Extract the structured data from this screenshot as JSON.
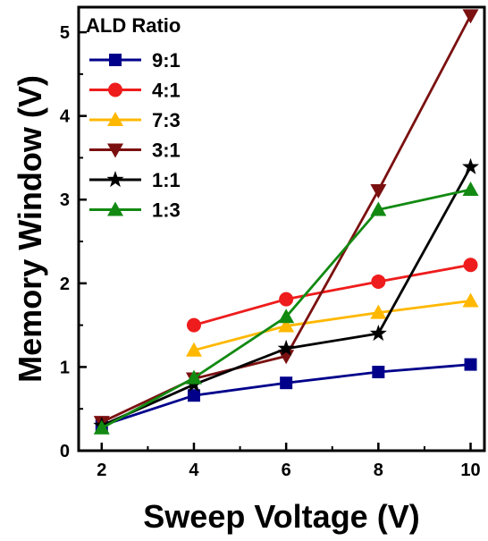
{
  "chart_data": {
    "type": "line",
    "title": "",
    "xlabel": "Sweep Voltage (V)",
    "ylabel": "Memory Window (V)",
    "xlim": [
      1.5,
      10.3
    ],
    "ylim": [
      0,
      5.3
    ],
    "xticks": [
      2,
      4,
      6,
      8,
      10
    ],
    "yticks": [
      0,
      1,
      2,
      3,
      4,
      5
    ],
    "grid": false,
    "legend": {
      "title": "ALD Ratio",
      "placement": "top-left"
    },
    "series": [
      {
        "name": "9:1",
        "color": "#00008B",
        "marker": "square",
        "x": [
          2,
          4,
          6,
          8,
          10
        ],
        "y": [
          0.3,
          0.66,
          0.81,
          0.94,
          1.03
        ]
      },
      {
        "name": "4:1",
        "color": "#EE1C1C",
        "marker": "circle",
        "x": [
          4,
          6,
          8,
          10
        ],
        "y": [
          1.5,
          1.81,
          2.02,
          2.22
        ]
      },
      {
        "name": "7:3",
        "color": "#FFB800",
        "marker": "triangle-up",
        "x": [
          4,
          6,
          8,
          10
        ],
        "y": [
          1.2,
          1.49,
          1.65,
          1.79
        ]
      },
      {
        "name": "3:1",
        "color": "#7B1010",
        "marker": "triangle-down",
        "x": [
          2,
          4,
          6,
          8,
          10
        ],
        "y": [
          0.34,
          0.86,
          1.13,
          3.11,
          5.2
        ]
      },
      {
        "name": "1:1",
        "color": "#000000",
        "marker": "star",
        "x": [
          2,
          4,
          6,
          8,
          10
        ],
        "y": [
          0.3,
          0.79,
          1.22,
          1.4,
          3.39
        ]
      },
      {
        "name": "1:3",
        "color": "#128A12",
        "marker": "triangle-up",
        "x": [
          2,
          4,
          6,
          8,
          10
        ],
        "y": [
          0.27,
          0.87,
          1.6,
          2.88,
          3.12
        ]
      }
    ]
  }
}
